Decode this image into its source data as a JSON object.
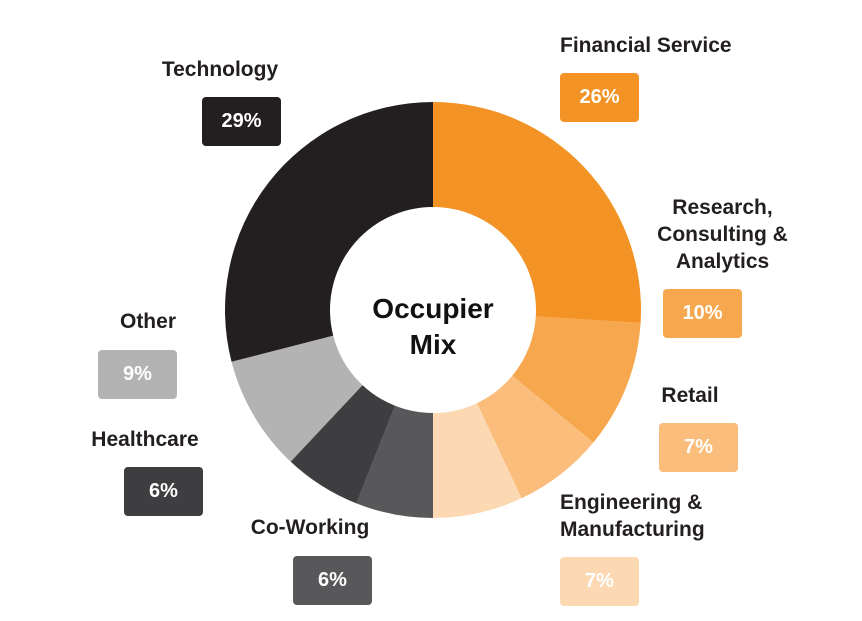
{
  "chart_data": {
    "type": "donut",
    "title": "Occupier Mix",
    "categories": [
      "Financial Service",
      "Research, Consulting & Analytics",
      "Retail",
      "Engineering & Manufacturing",
      "Co-Working",
      "Healthcare",
      "Other",
      "Technology"
    ],
    "values": [
      26,
      10,
      7,
      7,
      6,
      6,
      9,
      29
    ],
    "value_labels": [
      "26%",
      "10%",
      "7%",
      "7%",
      "6%",
      "6%",
      "9%",
      "29%"
    ],
    "colors": [
      "#f39325",
      "#f7a84e",
      "#fbbd7b",
      "#fdd9b3",
      "#58585a",
      "#3e3e40",
      "#b3b3b3",
      "#231f20"
    ]
  }
}
